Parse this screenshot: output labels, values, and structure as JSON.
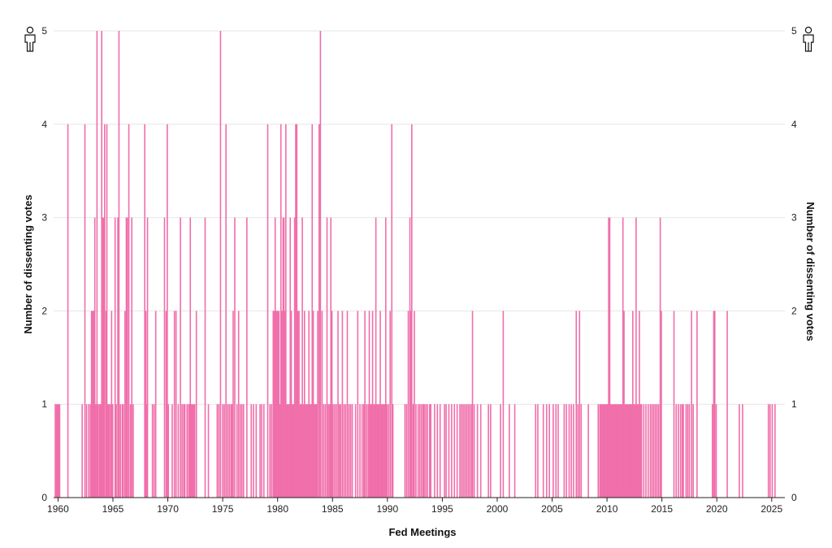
{
  "chart_data": {
    "type": "bar",
    "xlabel": "Fed Meetings",
    "ylabel": "Number of dissenting votes",
    "ylabel_right": "Number of dissenting votes",
    "xlim": [
      1959.6,
      2026.2
    ],
    "ylim": [
      0,
      5
    ],
    "x_ticks": [
      1960,
      1965,
      1970,
      1975,
      1980,
      1985,
      1990,
      1995,
      2000,
      2005,
      2010,
      2015,
      2020,
      2025
    ],
    "y_ticks": [
      0,
      1,
      2,
      3,
      4,
      5
    ],
    "grid": true,
    "bar_color": "#f06eaa",
    "icons": [
      "person-icon"
    ],
    "meetings": [
      {
        "x": 1959.75,
        "v": 1
      },
      {
        "x": 1959.85,
        "v": 1
      },
      {
        "x": 1959.95,
        "v": 1
      },
      {
        "x": 1960.05,
        "v": 1
      },
      {
        "x": 1960.15,
        "v": 1
      },
      {
        "x": 1960.9,
        "v": 4
      },
      {
        "x": 1962.2,
        "v": 1
      },
      {
        "x": 1962.45,
        "v": 4
      },
      {
        "x": 1962.6,
        "v": 1
      },
      {
        "x": 1962.8,
        "v": 1
      },
      {
        "x": 1962.95,
        "v": 1
      },
      {
        "x": 1963.05,
        "v": 2
      },
      {
        "x": 1963.12,
        "v": 2
      },
      {
        "x": 1963.2,
        "v": 2
      },
      {
        "x": 1963.28,
        "v": 2
      },
      {
        "x": 1963.35,
        "v": 3
      },
      {
        "x": 1963.45,
        "v": 1
      },
      {
        "x": 1963.55,
        "v": 5
      },
      {
        "x": 1963.65,
        "v": 1
      },
      {
        "x": 1963.78,
        "v": 1
      },
      {
        "x": 1963.88,
        "v": 1
      },
      {
        "x": 1963.98,
        "v": 5
      },
      {
        "x": 1964.05,
        "v": 3
      },
      {
        "x": 1964.15,
        "v": 3
      },
      {
        "x": 1964.25,
        "v": 4
      },
      {
        "x": 1964.38,
        "v": 2
      },
      {
        "x": 1964.45,
        "v": 4
      },
      {
        "x": 1964.55,
        "v": 1
      },
      {
        "x": 1964.65,
        "v": 1
      },
      {
        "x": 1964.78,
        "v": 1
      },
      {
        "x": 1964.88,
        "v": 2
      },
      {
        "x": 1964.98,
        "v": 1
      },
      {
        "x": 1965.2,
        "v": 3
      },
      {
        "x": 1965.3,
        "v": 1
      },
      {
        "x": 1965.45,
        "v": 3
      },
      {
        "x": 1965.55,
        "v": 5
      },
      {
        "x": 1965.68,
        "v": 1
      },
      {
        "x": 1965.85,
        "v": 1
      },
      {
        "x": 1965.95,
        "v": 1
      },
      {
        "x": 1966.1,
        "v": 2
      },
      {
        "x": 1966.22,
        "v": 3
      },
      {
        "x": 1966.32,
        "v": 3
      },
      {
        "x": 1966.45,
        "v": 4
      },
      {
        "x": 1966.6,
        "v": 1
      },
      {
        "x": 1966.72,
        "v": 3
      },
      {
        "x": 1966.85,
        "v": 1
      },
      {
        "x": 1967.9,
        "v": 4
      },
      {
        "x": 1968.0,
        "v": 2
      },
      {
        "x": 1968.1,
        "v": 1
      },
      {
        "x": 1968.15,
        "v": 3
      },
      {
        "x": 1968.6,
        "v": 1
      },
      {
        "x": 1968.75,
        "v": 1
      },
      {
        "x": 1968.9,
        "v": 2
      },
      {
        "x": 1969.7,
        "v": 3
      },
      {
        "x": 1969.85,
        "v": 2
      },
      {
        "x": 1969.95,
        "v": 4
      },
      {
        "x": 1970.05,
        "v": 1
      },
      {
        "x": 1970.4,
        "v": 1
      },
      {
        "x": 1970.6,
        "v": 2
      },
      {
        "x": 1970.75,
        "v": 2
      },
      {
        "x": 1970.95,
        "v": 1
      },
      {
        "x": 1971.15,
        "v": 3
      },
      {
        "x": 1971.3,
        "v": 1
      },
      {
        "x": 1971.45,
        "v": 1
      },
      {
        "x": 1971.55,
        "v": 1
      },
      {
        "x": 1971.75,
        "v": 1
      },
      {
        "x": 1971.9,
        "v": 1
      },
      {
        "x": 1971.98,
        "v": 1
      },
      {
        "x": 1972.05,
        "v": 3
      },
      {
        "x": 1972.15,
        "v": 1
      },
      {
        "x": 1972.25,
        "v": 1
      },
      {
        "x": 1972.35,
        "v": 1
      },
      {
        "x": 1972.45,
        "v": 1
      },
      {
        "x": 1972.6,
        "v": 2
      },
      {
        "x": 1973.4,
        "v": 3
      },
      {
        "x": 1973.7,
        "v": 1
      },
      {
        "x": 1974.5,
        "v": 1
      },
      {
        "x": 1974.65,
        "v": 1
      },
      {
        "x": 1974.8,
        "v": 5
      },
      {
        "x": 1975.0,
        "v": 1
      },
      {
        "x": 1975.15,
        "v": 1
      },
      {
        "x": 1975.3,
        "v": 4
      },
      {
        "x": 1975.45,
        "v": 1
      },
      {
        "x": 1975.6,
        "v": 1
      },
      {
        "x": 1975.75,
        "v": 1
      },
      {
        "x": 1975.85,
        "v": 1
      },
      {
        "x": 1975.95,
        "v": 2
      },
      {
        "x": 1976.1,
        "v": 3
      },
      {
        "x": 1976.3,
        "v": 1
      },
      {
        "x": 1976.45,
        "v": 2
      },
      {
        "x": 1976.6,
        "v": 1
      },
      {
        "x": 1976.75,
        "v": 1
      },
      {
        "x": 1976.9,
        "v": 1
      },
      {
        "x": 1977.2,
        "v": 3
      },
      {
        "x": 1977.6,
        "v": 1
      },
      {
        "x": 1977.8,
        "v": 1
      },
      {
        "x": 1978.05,
        "v": 1
      },
      {
        "x": 1978.4,
        "v": 1
      },
      {
        "x": 1978.55,
        "v": 1
      },
      {
        "x": 1978.75,
        "v": 1
      },
      {
        "x": 1979.1,
        "v": 4
      },
      {
        "x": 1979.3,
        "v": 1
      },
      {
        "x": 1979.45,
        "v": 1
      },
      {
        "x": 1979.6,
        "v": 2
      },
      {
        "x": 1979.7,
        "v": 2
      },
      {
        "x": 1979.78,
        "v": 3
      },
      {
        "x": 1979.85,
        "v": 2
      },
      {
        "x": 1979.95,
        "v": 2
      },
      {
        "x": 1980.05,
        "v": 2
      },
      {
        "x": 1980.12,
        "v": 2
      },
      {
        "x": 1980.2,
        "v": 1
      },
      {
        "x": 1980.3,
        "v": 4
      },
      {
        "x": 1980.4,
        "v": 2
      },
      {
        "x": 1980.5,
        "v": 3
      },
      {
        "x": 1980.58,
        "v": 3
      },
      {
        "x": 1980.68,
        "v": 2
      },
      {
        "x": 1980.75,
        "v": 4
      },
      {
        "x": 1980.85,
        "v": 1
      },
      {
        "x": 1980.95,
        "v": 1
      },
      {
        "x": 1981.05,
        "v": 1
      },
      {
        "x": 1981.15,
        "v": 3
      },
      {
        "x": 1981.25,
        "v": 2
      },
      {
        "x": 1981.35,
        "v": 1
      },
      {
        "x": 1981.45,
        "v": 1
      },
      {
        "x": 1981.55,
        "v": 3
      },
      {
        "x": 1981.65,
        "v": 4
      },
      {
        "x": 1981.75,
        "v": 4
      },
      {
        "x": 1981.85,
        "v": 2
      },
      {
        "x": 1981.95,
        "v": 2
      },
      {
        "x": 1982.05,
        "v": 1
      },
      {
        "x": 1982.15,
        "v": 1
      },
      {
        "x": 1982.25,
        "v": 3
      },
      {
        "x": 1982.35,
        "v": 1
      },
      {
        "x": 1982.45,
        "v": 2
      },
      {
        "x": 1982.55,
        "v": 1
      },
      {
        "x": 1982.65,
        "v": 1
      },
      {
        "x": 1982.75,
        "v": 1
      },
      {
        "x": 1982.85,
        "v": 2
      },
      {
        "x": 1982.95,
        "v": 1
      },
      {
        "x": 1983.05,
        "v": 1
      },
      {
        "x": 1983.15,
        "v": 4
      },
      {
        "x": 1983.25,
        "v": 2
      },
      {
        "x": 1983.35,
        "v": 1
      },
      {
        "x": 1983.45,
        "v": 1
      },
      {
        "x": 1983.55,
        "v": 1
      },
      {
        "x": 1983.65,
        "v": 2
      },
      {
        "x": 1983.78,
        "v": 4
      },
      {
        "x": 1983.9,
        "v": 5
      },
      {
        "x": 1984.05,
        "v": 2
      },
      {
        "x": 1984.2,
        "v": 1
      },
      {
        "x": 1984.35,
        "v": 1
      },
      {
        "x": 1984.5,
        "v": 3
      },
      {
        "x": 1984.62,
        "v": 1
      },
      {
        "x": 1984.75,
        "v": 1
      },
      {
        "x": 1984.85,
        "v": 3
      },
      {
        "x": 1984.95,
        "v": 2
      },
      {
        "x": 1985.05,
        "v": 1
      },
      {
        "x": 1985.2,
        "v": 1
      },
      {
        "x": 1985.35,
        "v": 1
      },
      {
        "x": 1985.5,
        "v": 2
      },
      {
        "x": 1985.62,
        "v": 1
      },
      {
        "x": 1985.75,
        "v": 1
      },
      {
        "x": 1985.9,
        "v": 2
      },
      {
        "x": 1986.05,
        "v": 1
      },
      {
        "x": 1986.2,
        "v": 1
      },
      {
        "x": 1986.35,
        "v": 2
      },
      {
        "x": 1986.5,
        "v": 1
      },
      {
        "x": 1986.65,
        "v": 1
      },
      {
        "x": 1986.8,
        "v": 1
      },
      {
        "x": 1987.1,
        "v": 1
      },
      {
        "x": 1987.3,
        "v": 2
      },
      {
        "x": 1987.5,
        "v": 1
      },
      {
        "x": 1987.7,
        "v": 1
      },
      {
        "x": 1987.85,
        "v": 1
      },
      {
        "x": 1987.95,
        "v": 2
      },
      {
        "x": 1988.1,
        "v": 1
      },
      {
        "x": 1988.25,
        "v": 1
      },
      {
        "x": 1988.35,
        "v": 2
      },
      {
        "x": 1988.45,
        "v": 1
      },
      {
        "x": 1988.55,
        "v": 1
      },
      {
        "x": 1988.65,
        "v": 2
      },
      {
        "x": 1988.75,
        "v": 1
      },
      {
        "x": 1988.85,
        "v": 1
      },
      {
        "x": 1988.95,
        "v": 3
      },
      {
        "x": 1989.05,
        "v": 1
      },
      {
        "x": 1989.15,
        "v": 1
      },
      {
        "x": 1989.25,
        "v": 1
      },
      {
        "x": 1989.35,
        "v": 2
      },
      {
        "x": 1989.45,
        "v": 1
      },
      {
        "x": 1989.55,
        "v": 1
      },
      {
        "x": 1989.65,
        "v": 1
      },
      {
        "x": 1989.75,
        "v": 1
      },
      {
        "x": 1989.85,
        "v": 3
      },
      {
        "x": 1989.95,
        "v": 1
      },
      {
        "x": 1990.1,
        "v": 1
      },
      {
        "x": 1990.25,
        "v": 2
      },
      {
        "x": 1990.4,
        "v": 4
      },
      {
        "x": 1990.5,
        "v": 1
      },
      {
        "x": 1991.6,
        "v": 1
      },
      {
        "x": 1991.75,
        "v": 1
      },
      {
        "x": 1991.9,
        "v": 2
      },
      {
        "x": 1992.05,
        "v": 3
      },
      {
        "x": 1992.15,
        "v": 2
      },
      {
        "x": 1992.22,
        "v": 4
      },
      {
        "x": 1992.35,
        "v": 1
      },
      {
        "x": 1992.45,
        "v": 2
      },
      {
        "x": 1992.6,
        "v": 1
      },
      {
        "x": 1992.8,
        "v": 1
      },
      {
        "x": 1992.95,
        "v": 1
      },
      {
        "x": 1993.1,
        "v": 1
      },
      {
        "x": 1993.25,
        "v": 1
      },
      {
        "x": 1993.35,
        "v": 1
      },
      {
        "x": 1993.5,
        "v": 1
      },
      {
        "x": 1993.65,
        "v": 1
      },
      {
        "x": 1993.85,
        "v": 1
      },
      {
        "x": 1993.95,
        "v": 1
      },
      {
        "x": 1994.3,
        "v": 1
      },
      {
        "x": 1994.55,
        "v": 1
      },
      {
        "x": 1994.8,
        "v": 1
      },
      {
        "x": 1995.2,
        "v": 1
      },
      {
        "x": 1995.35,
        "v": 1
      },
      {
        "x": 1995.6,
        "v": 1
      },
      {
        "x": 1995.85,
        "v": 1
      },
      {
        "x": 1996.1,
        "v": 1
      },
      {
        "x": 1996.35,
        "v": 1
      },
      {
        "x": 1996.6,
        "v": 1
      },
      {
        "x": 1996.75,
        "v": 1
      },
      {
        "x": 1996.9,
        "v": 1
      },
      {
        "x": 1997.05,
        "v": 1
      },
      {
        "x": 1997.2,
        "v": 1
      },
      {
        "x": 1997.35,
        "v": 1
      },
      {
        "x": 1997.5,
        "v": 1
      },
      {
        "x": 1997.65,
        "v": 1
      },
      {
        "x": 1997.75,
        "v": 2
      },
      {
        "x": 1997.9,
        "v": 1
      },
      {
        "x": 1998.2,
        "v": 1
      },
      {
        "x": 1998.5,
        "v": 1
      },
      {
        "x": 1999.2,
        "v": 1
      },
      {
        "x": 1999.4,
        "v": 1
      },
      {
        "x": 2000.3,
        "v": 1
      },
      {
        "x": 2000.55,
        "v": 2
      },
      {
        "x": 2001.1,
        "v": 1
      },
      {
        "x": 2001.6,
        "v": 1
      },
      {
        "x": 2003.5,
        "v": 1
      },
      {
        "x": 2003.7,
        "v": 1
      },
      {
        "x": 2004.2,
        "v": 1
      },
      {
        "x": 2004.5,
        "v": 1
      },
      {
        "x": 2004.75,
        "v": 1
      },
      {
        "x": 2005.1,
        "v": 1
      },
      {
        "x": 2005.35,
        "v": 1
      },
      {
        "x": 2005.55,
        "v": 1
      },
      {
        "x": 2006.1,
        "v": 1
      },
      {
        "x": 2006.3,
        "v": 1
      },
      {
        "x": 2006.55,
        "v": 1
      },
      {
        "x": 2006.75,
        "v": 1
      },
      {
        "x": 2006.95,
        "v": 1
      },
      {
        "x": 2007.2,
        "v": 2
      },
      {
        "x": 2007.35,
        "v": 1
      },
      {
        "x": 2007.5,
        "v": 2
      },
      {
        "x": 2007.65,
        "v": 1
      },
      {
        "x": 2008.3,
        "v": 1
      },
      {
        "x": 2009.2,
        "v": 1
      },
      {
        "x": 2009.35,
        "v": 1
      },
      {
        "x": 2009.45,
        "v": 1
      },
      {
        "x": 2009.55,
        "v": 1
      },
      {
        "x": 2009.65,
        "v": 1
      },
      {
        "x": 2009.75,
        "v": 1
      },
      {
        "x": 2009.85,
        "v": 1
      },
      {
        "x": 2009.95,
        "v": 1
      },
      {
        "x": 2010.05,
        "v": 1
      },
      {
        "x": 2010.15,
        "v": 3
      },
      {
        "x": 2010.25,
        "v": 3
      },
      {
        "x": 2010.35,
        "v": 1
      },
      {
        "x": 2010.45,
        "v": 1
      },
      {
        "x": 2010.55,
        "v": 1
      },
      {
        "x": 2010.65,
        "v": 1
      },
      {
        "x": 2010.75,
        "v": 1
      },
      {
        "x": 2010.85,
        "v": 1
      },
      {
        "x": 2010.95,
        "v": 1
      },
      {
        "x": 2011.05,
        "v": 1
      },
      {
        "x": 2011.15,
        "v": 1
      },
      {
        "x": 2011.25,
        "v": 1
      },
      {
        "x": 2011.35,
        "v": 1
      },
      {
        "x": 2011.45,
        "v": 3
      },
      {
        "x": 2011.55,
        "v": 2
      },
      {
        "x": 2011.65,
        "v": 1
      },
      {
        "x": 2011.75,
        "v": 1
      },
      {
        "x": 2011.85,
        "v": 1
      },
      {
        "x": 2011.95,
        "v": 1
      },
      {
        "x": 2012.05,
        "v": 1
      },
      {
        "x": 2012.15,
        "v": 1
      },
      {
        "x": 2012.25,
        "v": 1
      },
      {
        "x": 2012.35,
        "v": 2
      },
      {
        "x": 2012.45,
        "v": 1
      },
      {
        "x": 2012.55,
        "v": 1
      },
      {
        "x": 2012.65,
        "v": 3
      },
      {
        "x": 2012.75,
        "v": 1
      },
      {
        "x": 2012.85,
        "v": 1
      },
      {
        "x": 2012.95,
        "v": 2
      },
      {
        "x": 2013.05,
        "v": 1
      },
      {
        "x": 2013.15,
        "v": 1
      },
      {
        "x": 2013.35,
        "v": 1
      },
      {
        "x": 2013.55,
        "v": 1
      },
      {
        "x": 2013.75,
        "v": 1
      },
      {
        "x": 2013.95,
        "v": 1
      },
      {
        "x": 2014.1,
        "v": 1
      },
      {
        "x": 2014.25,
        "v": 1
      },
      {
        "x": 2014.4,
        "v": 1
      },
      {
        "x": 2014.55,
        "v": 1
      },
      {
        "x": 2014.7,
        "v": 1
      },
      {
        "x": 2014.85,
        "v": 3
      },
      {
        "x": 2014.95,
        "v": 2
      },
      {
        "x": 2016.1,
        "v": 2
      },
      {
        "x": 2016.3,
        "v": 1
      },
      {
        "x": 2016.5,
        "v": 1
      },
      {
        "x": 2016.7,
        "v": 1
      },
      {
        "x": 2016.85,
        "v": 1
      },
      {
        "x": 2016.95,
        "v": 1
      },
      {
        "x": 2017.2,
        "v": 1
      },
      {
        "x": 2017.35,
        "v": 1
      },
      {
        "x": 2017.5,
        "v": 1
      },
      {
        "x": 2017.7,
        "v": 2
      },
      {
        "x": 2017.85,
        "v": 1
      },
      {
        "x": 2018.2,
        "v": 2
      },
      {
        "x": 2019.6,
        "v": 1
      },
      {
        "x": 2019.72,
        "v": 2
      },
      {
        "x": 2019.82,
        "v": 2
      },
      {
        "x": 2019.95,
        "v": 1
      },
      {
        "x": 2020.95,
        "v": 2
      },
      {
        "x": 2022.05,
        "v": 1
      },
      {
        "x": 2022.35,
        "v": 1
      },
      {
        "x": 2024.7,
        "v": 1
      },
      {
        "x": 2024.85,
        "v": 1
      },
      {
        "x": 2025.05,
        "v": 1
      },
      {
        "x": 2025.3,
        "v": 1
      }
    ]
  }
}
